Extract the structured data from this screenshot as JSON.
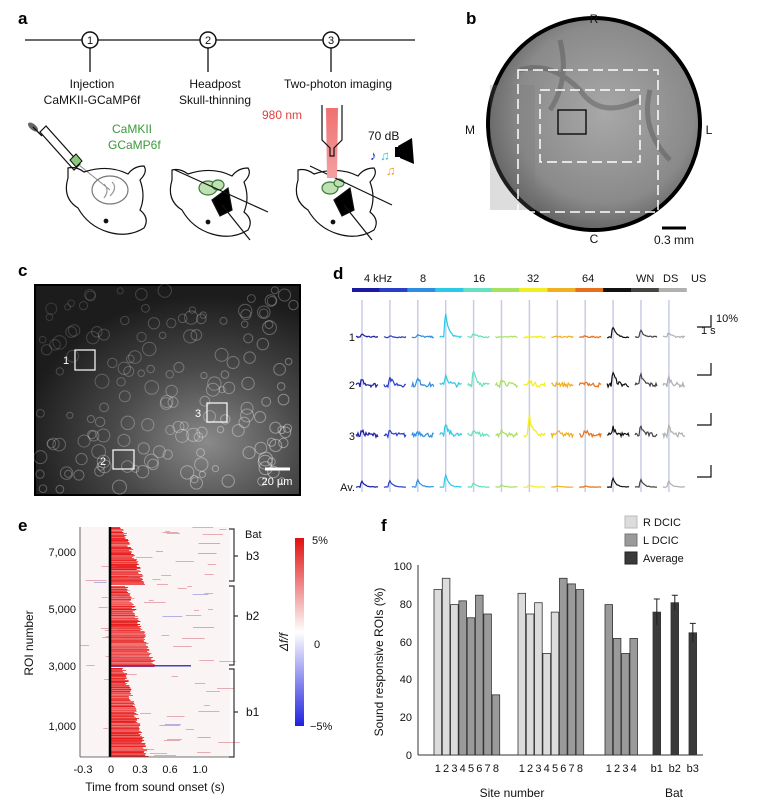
{
  "panels": {
    "a": {
      "label": "a",
      "steps": [
        {
          "num": "1",
          "line1": "Injection",
          "line2": "CaMKII-GCaMP6f"
        },
        {
          "num": "2",
          "line1": "Headpost",
          "line2": "Skull-thinning"
        },
        {
          "num": "3",
          "line1": "Two-photon imaging",
          "line2": ""
        }
      ],
      "virus_line1": "CaMKII",
      "virus_line2": "GCaMP6f",
      "laser": "980 nm",
      "sound_level": "70 dB",
      "colors": {
        "virus": "#3a9a3a",
        "laser": "#e0403f"
      }
    },
    "b": {
      "label": "b",
      "orient": {
        "top": "R",
        "bottom": "C",
        "left": "M",
        "right": "L"
      },
      "scale": "0.3 mm"
    },
    "c": {
      "label": "c",
      "rois": [
        "1",
        "2",
        "3"
      ],
      "scale": "20 µm"
    },
    "d": {
      "label": "d",
      "freq_labels": [
        "4 kHz",
        "8",
        "16",
        "32",
        "64",
        "WN",
        "DS",
        "US"
      ],
      "stim_colors": [
        "#1a1aa0",
        "#2a3ec8",
        "#2e8ee0",
        "#2cc8e8",
        "#66e0c0",
        "#a8e060",
        "#f2ee20",
        "#f2b020",
        "#e8701a",
        "#111111",
        "#444444",
        "#b0b0b0"
      ],
      "row_labels": [
        "1",
        "2",
        "3",
        "Av."
      ],
      "scale_y": "10%",
      "scale_x": "1 s",
      "peaks": [
        [
          4,
          1,
          3,
          32,
          5,
          1,
          1,
          1,
          1,
          14,
          9,
          6
        ],
        [
          8,
          10,
          8,
          14,
          22,
          10,
          6,
          3,
          5,
          18,
          14,
          10
        ],
        [
          5,
          4,
          5,
          14,
          8,
          6,
          26,
          5,
          7,
          10,
          12,
          14
        ],
        [
          8,
          9,
          10,
          17,
          6,
          3,
          3,
          1,
          1,
          12,
          10,
          8
        ]
      ]
    },
    "e": {
      "label": "e",
      "bat_header": "Bat",
      "groups": [
        "b3",
        "b2",
        "b1"
      ],
      "colorbar": {
        "max": "5%",
        "mid": "0",
        "min": "−5%",
        "label": "Δf/f",
        "colors": [
          "#2020e0",
          "#ffffff",
          "#e01010"
        ]
      }
    },
    "f": {
      "label": "f"
    }
  },
  "chart_data": [
    {
      "type": "heatmap",
      "xlabel": "Time from sound onset (s)",
      "ylabel": "ROI number",
      "xticks": [
        "-0.3",
        "0",
        "0.3",
        "0.6",
        "1.0"
      ],
      "yticks": [
        "1,000",
        "3,000",
        "5,000",
        "7,000"
      ],
      "xlim": [
        -0.35,
        1.35
      ],
      "ylim": [
        0,
        8000
      ]
    },
    {
      "type": "bar",
      "ylabel": "Sound responsive ROIs (%)",
      "xlabel": "Site number",
      "xlabel2": "Bat",
      "ylim": [
        0,
        100
      ],
      "yticks": [
        "0",
        "20",
        "40",
        "60",
        "80",
        "100"
      ],
      "legend": [
        {
          "name": "R DCIC",
          "color": "#dcdcdc"
        },
        {
          "name": "L DCIC",
          "color": "#9a9a9a"
        },
        {
          "name": "Average",
          "color": "#3a3a3a"
        }
      ],
      "legend_position": "top-right",
      "groups": [
        {
          "bars": [
            {
              "label": "1",
              "value": 88,
              "side": "R"
            },
            {
              "label": "2",
              "value": 94,
              "side": "R"
            },
            {
              "label": "3",
              "value": 80,
              "side": "R"
            },
            {
              "label": "4",
              "value": 82,
              "side": "L"
            },
            {
              "label": "5",
              "value": 73,
              "side": "L"
            },
            {
              "label": "6",
              "value": 85,
              "side": "L"
            },
            {
              "label": "7",
              "value": 75,
              "side": "L"
            },
            {
              "label": "8",
              "value": 32,
              "side": "L"
            }
          ]
        },
        {
          "bars": [
            {
              "label": "1",
              "value": 86,
              "side": "R"
            },
            {
              "label": "2",
              "value": 75,
              "side": "R"
            },
            {
              "label": "3",
              "value": 81,
              "side": "R"
            },
            {
              "label": "4",
              "value": 54,
              "side": "R"
            },
            {
              "label": "5",
              "value": 76,
              "side": "R"
            },
            {
              "label": "6",
              "value": 94,
              "side": "L"
            },
            {
              "label": "7",
              "value": 91,
              "side": "L"
            },
            {
              "label": "8",
              "value": 88,
              "side": "L"
            }
          ]
        },
        {
          "bars": [
            {
              "label": "1",
              "value": 80,
              "side": "L"
            },
            {
              "label": "2",
              "value": 62,
              "side": "L"
            },
            {
              "label": "3",
              "value": 54,
              "side": "L"
            },
            {
              "label": "4",
              "value": 62,
              "side": "L"
            }
          ]
        },
        {
          "bars": [
            {
              "label": "b1",
              "value": 76,
              "error": 7,
              "side": "Average"
            },
            {
              "label": "b2",
              "value": 81,
              "error": 4,
              "side": "Average"
            },
            {
              "label": "b3",
              "value": 65,
              "error": 5,
              "side": "Average"
            }
          ]
        }
      ]
    }
  ]
}
